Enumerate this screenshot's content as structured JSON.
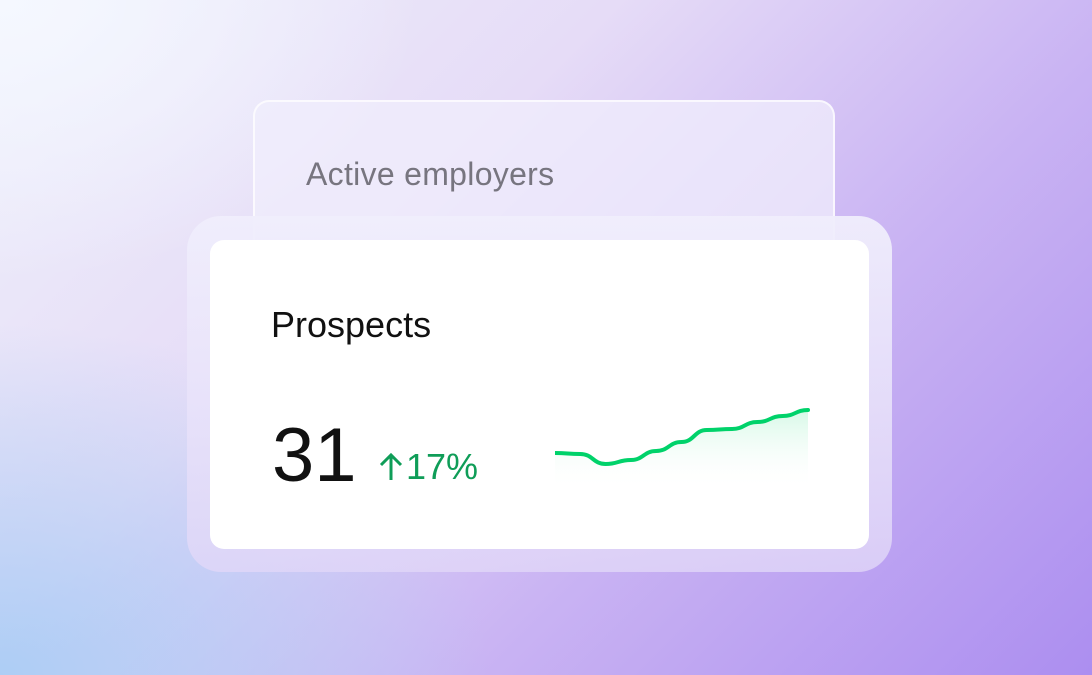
{
  "back_card": {
    "title": "Active employers"
  },
  "card": {
    "title": "Prospects",
    "value": "31",
    "delta_icon": "arrow-up-icon",
    "delta": "17%",
    "delta_color": "#0f9d58"
  },
  "chart_data": {
    "type": "area",
    "values": [
      47,
      46,
      36,
      40,
      49,
      58,
      70,
      71,
      78,
      84,
      90
    ],
    "line_color": "#00d26a",
    "fill_color": "#dcfaeb",
    "grid": false,
    "axes": false
  }
}
